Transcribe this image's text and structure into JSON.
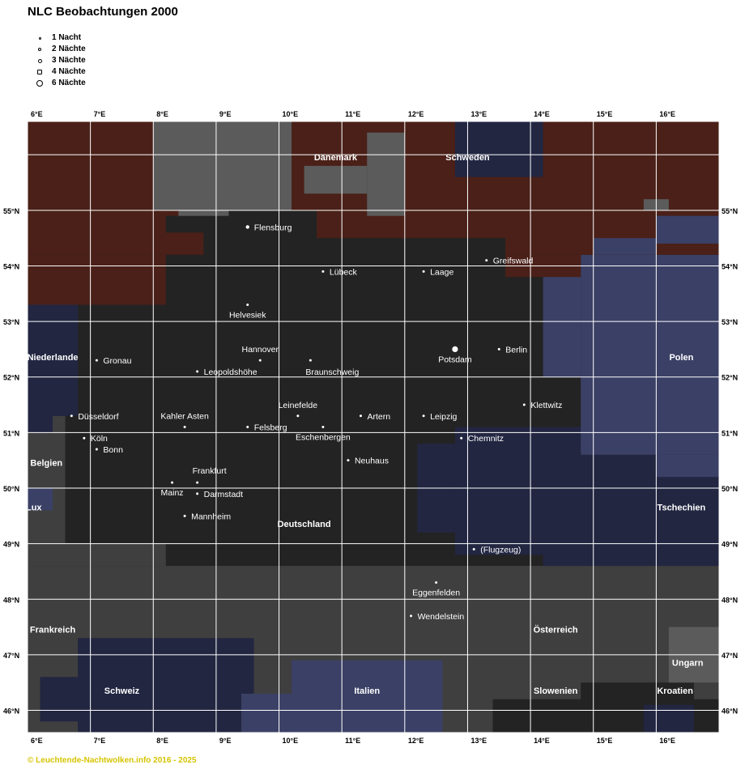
{
  "title": "NLC Beobachtungen 2000",
  "legend": [
    {
      "label": "1 Nacht",
      "nights": 1
    },
    {
      "label": "2 Nächte",
      "nights": 2
    },
    {
      "label": "3 Nächte",
      "nights": 3
    },
    {
      "label": "4 Nächte",
      "nights": 4
    },
    {
      "label": "6 Nächte",
      "nights": 6
    }
  ],
  "axes": {
    "lon_ticks": [
      "6°E",
      "7°E",
      "8°E",
      "9°E",
      "10°E",
      "11°E",
      "12°E",
      "13°E",
      "14°E",
      "15°E",
      "16°E"
    ],
    "lat_ticks": [
      "55°N",
      "54°N",
      "53°N",
      "52°N",
      "51°N",
      "50°N",
      "49°N",
      "48°N",
      "47°N",
      "46°N"
    ]
  },
  "colors": {
    "land_germany": "#232323",
    "land_neighbor": "#3f3f3f",
    "land_grey_light": "#5b5b5b",
    "sea_dark": "#4a2018",
    "region_navy": "#222641",
    "region_blue": "#3b4066",
    "grid": "#ffffff",
    "station": "#ffffff",
    "copyright": "#d6c400"
  },
  "countries": [
    {
      "name": "Dänemark",
      "lon": 10.9,
      "lat": 55.9
    },
    {
      "name": "Schweden",
      "lon": 13.0,
      "lat": 55.9
    },
    {
      "name": "Niederlande",
      "lon": 6.4,
      "lat": 52.3
    },
    {
      "name": "Polen",
      "lon": 16.4,
      "lat": 52.3
    },
    {
      "name": "Belgien",
      "lon": 6.3,
      "lat": 50.4
    },
    {
      "name": "Lux",
      "lon": 6.1,
      "lat": 49.6
    },
    {
      "name": "Deutschland",
      "lon": 10.4,
      "lat": 49.3
    },
    {
      "name": "Tschechien",
      "lon": 16.4,
      "lat": 49.6
    },
    {
      "name": "Frankreich",
      "lon": 6.4,
      "lat": 47.4
    },
    {
      "name": "Österreich",
      "lon": 14.4,
      "lat": 47.4
    },
    {
      "name": "Ungarn",
      "lon": 16.5,
      "lat": 46.8
    },
    {
      "name": "Schweiz",
      "lon": 7.5,
      "lat": 46.3
    },
    {
      "name": "Italien",
      "lon": 11.4,
      "lat": 46.3
    },
    {
      "name": "Slowenien",
      "lon": 14.4,
      "lat": 46.3
    },
    {
      "name": "Kroatien",
      "lon": 16.3,
      "lat": 46.3
    }
  ],
  "stations": [
    {
      "name": "Flensburg",
      "lon": 9.5,
      "lat": 54.7,
      "nights": 2,
      "label_pos": "right"
    },
    {
      "name": "Greifswald",
      "lon": 13.3,
      "lat": 54.1,
      "nights": 1,
      "label_pos": "right"
    },
    {
      "name": "Lübeck",
      "lon": 10.7,
      "lat": 53.9,
      "nights": 1,
      "label_pos": "right"
    },
    {
      "name": "Laage",
      "lon": 12.3,
      "lat": 53.9,
      "nights": 1,
      "label_pos": "right"
    },
    {
      "name": "Helvesiek",
      "lon": 9.5,
      "lat": 53.3,
      "nights": 1,
      "label_pos": "below"
    },
    {
      "name": "Hannover",
      "lon": 9.7,
      "lat": 52.3,
      "nights": 1,
      "label_pos": "above"
    },
    {
      "name": "Braunschweig",
      "lon": 10.5,
      "lat": 52.3,
      "nights": 1,
      "label_pos": "below-right"
    },
    {
      "name": "Potsdam",
      "lon": 12.8,
      "lat": 52.5,
      "nights": 6,
      "label_pos": "below"
    },
    {
      "name": "Berlin",
      "lon": 13.5,
      "lat": 52.5,
      "nights": 1,
      "label_pos": "right"
    },
    {
      "name": "Gronau",
      "lon": 7.1,
      "lat": 52.3,
      "nights": 1,
      "label_pos": "right"
    },
    {
      "name": "Leopoldshöhe",
      "lon": 8.7,
      "lat": 52.1,
      "nights": 1,
      "label_pos": "right"
    },
    {
      "name": "Klettwitz",
      "lon": 13.9,
      "lat": 51.5,
      "nights": 1,
      "label_pos": "right"
    },
    {
      "name": "Düsseldorf",
      "lon": 6.7,
      "lat": 51.3,
      "nights": 1,
      "label_pos": "right"
    },
    {
      "name": "Leinefelde",
      "lon": 10.3,
      "lat": 51.3,
      "nights": 1,
      "label_pos": "above"
    },
    {
      "name": "Artern",
      "lon": 11.3,
      "lat": 51.3,
      "nights": 1,
      "label_pos": "right"
    },
    {
      "name": "Leipzig",
      "lon": 12.3,
      "lat": 51.3,
      "nights": 1,
      "label_pos": "right"
    },
    {
      "name": "Kahler Asten",
      "lon": 8.5,
      "lat": 51.1,
      "nights": 1,
      "label_pos": "above"
    },
    {
      "name": "Felsberg",
      "lon": 9.5,
      "lat": 51.1,
      "nights": 1,
      "label_pos": "right"
    },
    {
      "name": "Eschenbergen",
      "lon": 10.7,
      "lat": 51.1,
      "nights": 1,
      "label_pos": "below"
    },
    {
      "name": "Köln",
      "lon": 6.9,
      "lat": 50.9,
      "nights": 1,
      "label_pos": "right"
    },
    {
      "name": "Chemnitz",
      "lon": 12.9,
      "lat": 50.9,
      "nights": 1,
      "label_pos": "right"
    },
    {
      "name": "Bonn",
      "lon": 7.1,
      "lat": 50.7,
      "nights": 1,
      "label_pos": "right"
    },
    {
      "name": "Neuhaus",
      "lon": 11.1,
      "lat": 50.5,
      "nights": 1,
      "label_pos": "right"
    },
    {
      "name": "Frankfurt",
      "lon": 8.7,
      "lat": 50.1,
      "nights": 1,
      "label_pos": "above-right"
    },
    {
      "name": "Mainz",
      "lon": 8.3,
      "lat": 50.1,
      "nights": 1,
      "label_pos": "below"
    },
    {
      "name": "Darmstadt",
      "lon": 8.7,
      "lat": 49.9,
      "nights": 1,
      "label_pos": "right"
    },
    {
      "name": "Mannheim",
      "lon": 8.5,
      "lat": 49.5,
      "nights": 1,
      "label_pos": "right"
    },
    {
      "name": "(Flugzeug)",
      "lon": 13.1,
      "lat": 48.9,
      "nights": 1,
      "label_pos": "right"
    },
    {
      "name": "Eggenfelden",
      "lon": 12.5,
      "lat": 48.3,
      "nights": 1,
      "label_pos": "below"
    },
    {
      "name": "Wendelstein",
      "lon": 12.1,
      "lat": 47.7,
      "nights": 1,
      "label_pos": "right"
    }
  ],
  "copyright": "© Leuchtende-Nachtwolken.info 2016 - 2025"
}
